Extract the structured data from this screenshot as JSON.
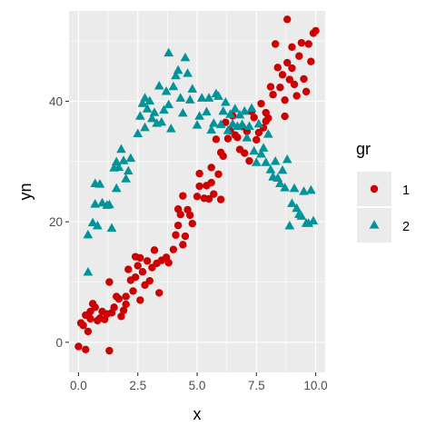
{
  "chart_data": {
    "type": "scatter",
    "title": "",
    "xlabel": "x",
    "ylabel": "yn",
    "xlim": [
      -0.4,
      10.4
    ],
    "ylim": [
      -5,
      55
    ],
    "x_ticks": [
      0,
      2.5,
      5,
      7.5,
      10
    ],
    "x_tick_labels": [
      "0.0",
      "2.5",
      "5.0",
      "7.5",
      "10.0"
    ],
    "y_ticks": [
      0,
      20,
      40
    ],
    "y_tick_labels": [
      "0",
      "20",
      "40"
    ],
    "grid": true,
    "legend": {
      "title": "gr",
      "position": "right",
      "entries": [
        {
          "label": "1",
          "shape": "circle",
          "color": "#CC0000"
        },
        {
          "label": "2",
          "shape": "triangle",
          "color": "#00939A"
        }
      ]
    },
    "series": [
      {
        "name": "1",
        "shape": "circle",
        "color": "#CC0000",
        "points": [
          [
            0.0,
            -0.7
          ],
          [
            0.1,
            3.2
          ],
          [
            0.2,
            2.8
          ],
          [
            0.3,
            4.5
          ],
          [
            0.3,
            -1.2
          ],
          [
            0.4,
            1.8
          ],
          [
            0.5,
            3.9
          ],
          [
            0.5,
            5.1
          ],
          [
            0.6,
            6.4
          ],
          [
            0.7,
            5.8
          ],
          [
            0.8,
            3.6
          ],
          [
            0.9,
            4.0
          ],
          [
            1.0,
            5.1
          ],
          [
            1.1,
            3.8
          ],
          [
            1.2,
            4.7
          ],
          [
            1.3,
            10.0
          ],
          [
            1.3,
            -1.4
          ],
          [
            1.4,
            4.9
          ],
          [
            1.5,
            5.8
          ],
          [
            1.6,
            7.6
          ],
          [
            1.7,
            7.2
          ],
          [
            1.8,
            4.3
          ],
          [
            1.9,
            5.3
          ],
          [
            2.0,
            7.6
          ],
          [
            2.0,
            6.3
          ],
          [
            2.1,
            12.1
          ],
          [
            2.2,
            10.3
          ],
          [
            2.3,
            8.5
          ],
          [
            2.4,
            14.2
          ],
          [
            2.4,
            10.8
          ],
          [
            2.5,
            12.7
          ],
          [
            2.6,
            7.0
          ],
          [
            2.6,
            14.0
          ],
          [
            2.7,
            11.7
          ],
          [
            2.8,
            9.5
          ],
          [
            2.9,
            13.5
          ],
          [
            3.0,
            10.2
          ],
          [
            3.1,
            12.4
          ],
          [
            3.2,
            15.3
          ],
          [
            3.3,
            13.1
          ],
          [
            3.4,
            8.2
          ],
          [
            3.5,
            13.6
          ],
          [
            3.7,
            14.1
          ],
          [
            3.8,
            13.2
          ],
          [
            4.0,
            15.4
          ],
          [
            4.1,
            17.8
          ],
          [
            4.2,
            22.1
          ],
          [
            4.2,
            19.4
          ],
          [
            4.3,
            21.2
          ],
          [
            4.4,
            24.3
          ],
          [
            4.4,
            16.2
          ],
          [
            4.5,
            17.6
          ],
          [
            4.6,
            22.0
          ],
          [
            4.7,
            21.1
          ],
          [
            4.8,
            19.7
          ],
          [
            5.0,
            24.2
          ],
          [
            5.1,
            28.0
          ],
          [
            5.1,
            25.9
          ],
          [
            5.3,
            23.9
          ],
          [
            5.4,
            26.0
          ],
          [
            5.5,
            23.8
          ],
          [
            5.6,
            26.5
          ],
          [
            5.6,
            29.0
          ],
          [
            5.7,
            24.6
          ],
          [
            5.8,
            33.7
          ],
          [
            5.9,
            27.9
          ],
          [
            6.0,
            23.7
          ],
          [
            6.0,
            31.5
          ],
          [
            6.1,
            30.9
          ],
          [
            6.2,
            36.5
          ],
          [
            6.3,
            33.8
          ],
          [
            6.4,
            35.1
          ],
          [
            6.5,
            37.6
          ],
          [
            6.6,
            34.4
          ],
          [
            6.7,
            34.0
          ],
          [
            6.8,
            32.0
          ],
          [
            6.9,
            35.8
          ],
          [
            7.0,
            31.4
          ],
          [
            7.1,
            35.0
          ],
          [
            7.2,
            30.1
          ],
          [
            7.3,
            38.3
          ],
          [
            7.4,
            37.3
          ],
          [
            7.5,
            33.6
          ],
          [
            7.6,
            34.8
          ],
          [
            7.7,
            39.6
          ],
          [
            7.8,
            35.6
          ],
          [
            7.9,
            38.1
          ],
          [
            8.0,
            37.2
          ],
          [
            8.1,
            42.4
          ],
          [
            8.2,
            41.1
          ],
          [
            8.3,
            49.5
          ],
          [
            8.4,
            45.6
          ],
          [
            8.5,
            42.3
          ],
          [
            8.6,
            44.4
          ],
          [
            8.7,
            37.5
          ],
          [
            8.8,
            53.6
          ],
          [
            8.8,
            46.4
          ],
          [
            8.9,
            43.6
          ],
          [
            9.0,
            45.5
          ],
          [
            9.1,
            42.8
          ],
          [
            9.2,
            40.9
          ],
          [
            9.3,
            47.5
          ],
          [
            9.4,
            49.7
          ],
          [
            9.5,
            43.7
          ],
          [
            9.6,
            41.6
          ],
          [
            9.7,
            49.5
          ],
          [
            9.8,
            46.6
          ],
          [
            9.9,
            51.3
          ],
          [
            10.0,
            51.7
          ],
          [
            8.7,
            40.2
          ],
          [
            9.0,
            49.0
          ],
          [
            7.9,
            36.7
          ]
        ]
      },
      {
        "name": "2",
        "shape": "triangle",
        "color": "#00939A",
        "points": [
          [
            0.4,
            11.6
          ],
          [
            0.4,
            17.8
          ],
          [
            0.6,
            19.8
          ],
          [
            0.7,
            26.3
          ],
          [
            0.7,
            22.9
          ],
          [
            0.8,
            19.3
          ],
          [
            0.9,
            26.2
          ],
          [
            1.0,
            23.1
          ],
          [
            1.2,
            22.7
          ],
          [
            1.3,
            22.8
          ],
          [
            1.4,
            18.9
          ],
          [
            1.5,
            28.9
          ],
          [
            1.6,
            29.9
          ],
          [
            1.6,
            25.5
          ],
          [
            1.7,
            29.0
          ],
          [
            1.8,
            32.0
          ],
          [
            1.9,
            30.1
          ],
          [
            2.0,
            27.1
          ],
          [
            2.1,
            28.4
          ],
          [
            2.2,
            30.5
          ],
          [
            2.5,
            34.6
          ],
          [
            2.6,
            37.5
          ],
          [
            2.7,
            39.6
          ],
          [
            2.8,
            40.5
          ],
          [
            2.8,
            35.6
          ],
          [
            2.9,
            38.7
          ],
          [
            3.0,
            40.0
          ],
          [
            3.1,
            37.1
          ],
          [
            3.2,
            38.1
          ],
          [
            3.3,
            36.3
          ],
          [
            3.4,
            42.5
          ],
          [
            3.5,
            36.5
          ],
          [
            3.6,
            38.5
          ],
          [
            3.7,
            41.6
          ],
          [
            3.8,
            48.0
          ],
          [
            3.8,
            39.4
          ],
          [
            3.9,
            35.4
          ],
          [
            4.0,
            42.4
          ],
          [
            4.1,
            44.2
          ],
          [
            4.2,
            45.1
          ],
          [
            4.3,
            40.5
          ],
          [
            4.4,
            38.0
          ],
          [
            4.5,
            47.2
          ],
          [
            4.6,
            44.6
          ],
          [
            4.7,
            40.2
          ],
          [
            4.8,
            42.0
          ],
          [
            5.0,
            36.0
          ],
          [
            5.1,
            37.5
          ],
          [
            5.2,
            40.5
          ],
          [
            5.4,
            38.2
          ],
          [
            5.5,
            40.5
          ],
          [
            5.6,
            35.2
          ],
          [
            5.7,
            36.3
          ],
          [
            5.8,
            41.2
          ],
          [
            5.9,
            40.8
          ],
          [
            6.0,
            36.1
          ],
          [
            6.1,
            38.3
          ],
          [
            6.2,
            39.8
          ],
          [
            6.3,
            35.1
          ],
          [
            6.4,
            37.8
          ],
          [
            6.5,
            36.2
          ],
          [
            6.6,
            38.7
          ],
          [
            6.7,
            35.8
          ],
          [
            6.8,
            37.7
          ],
          [
            6.9,
            36.1
          ],
          [
            7.0,
            38.3
          ],
          [
            7.1,
            33.9
          ],
          [
            7.2,
            35.8
          ],
          [
            7.3,
            38.8
          ],
          [
            7.4,
            31.7
          ],
          [
            7.5,
            29.8
          ],
          [
            7.6,
            36.2
          ],
          [
            7.7,
            31.2
          ],
          [
            7.8,
            32.2
          ],
          [
            7.9,
            29.8
          ],
          [
            8.0,
            34.5
          ],
          [
            8.1,
            28.6
          ],
          [
            8.2,
            27.4
          ],
          [
            8.3,
            30.0
          ],
          [
            8.4,
            27.2
          ],
          [
            8.5,
            26.3
          ],
          [
            8.6,
            28.5
          ],
          [
            8.7,
            25.6
          ],
          [
            8.8,
            30.3
          ],
          [
            8.9,
            19.3
          ],
          [
            9.0,
            23.0
          ],
          [
            9.1,
            25.5
          ],
          [
            9.2,
            22.2
          ],
          [
            9.3,
            21.2
          ],
          [
            9.4,
            20.9
          ],
          [
            9.5,
            25.0
          ],
          [
            9.6,
            19.7
          ],
          [
            9.7,
            19.7
          ],
          [
            9.8,
            25.2
          ],
          [
            9.9,
            20.1
          ]
        ]
      }
    ]
  }
}
